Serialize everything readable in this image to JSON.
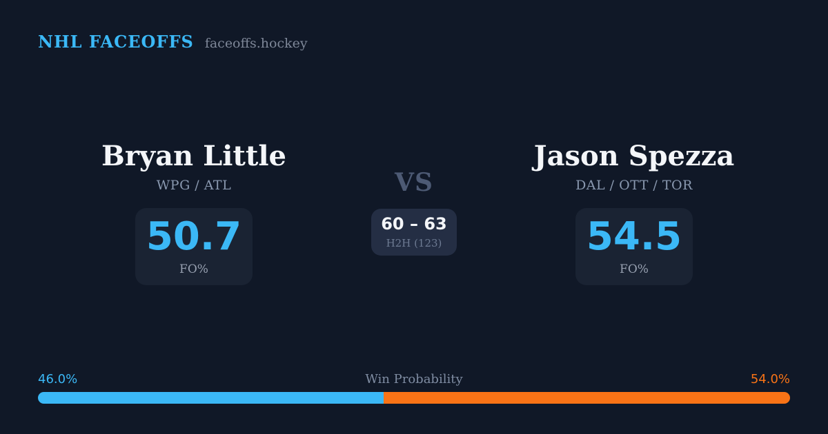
{
  "header": {
    "brand": "NHL FACEOFFS",
    "site": "faceoffs.hockey"
  },
  "players": {
    "left": {
      "name": "Bryan Little",
      "teams": "WPG / ATL",
      "fo_value": "50.7",
      "fo_label": "FO%"
    },
    "right": {
      "name": "Jason Spezza",
      "teams": "DAL / OTT / TOR",
      "fo_value": "54.5",
      "fo_label": "FO%"
    }
  },
  "center": {
    "vs_label": "VS",
    "h2h_score": "60 – 63",
    "h2h_label": "H2H (123)"
  },
  "win_probability": {
    "title": "Win Probability",
    "left_label": "46.0%",
    "right_label": "54.0%",
    "left_value": 46.0,
    "right_value": 54.0
  },
  "colors": {
    "background": "#101827",
    "card": "#1a2333",
    "card_center": "#242e44",
    "accent_blue": "#3bb8f6",
    "accent_orange": "#f97316",
    "text_primary": "#f4f6f9",
    "text_muted": "#8a99b0",
    "vs_text": "#4d5a74"
  }
}
